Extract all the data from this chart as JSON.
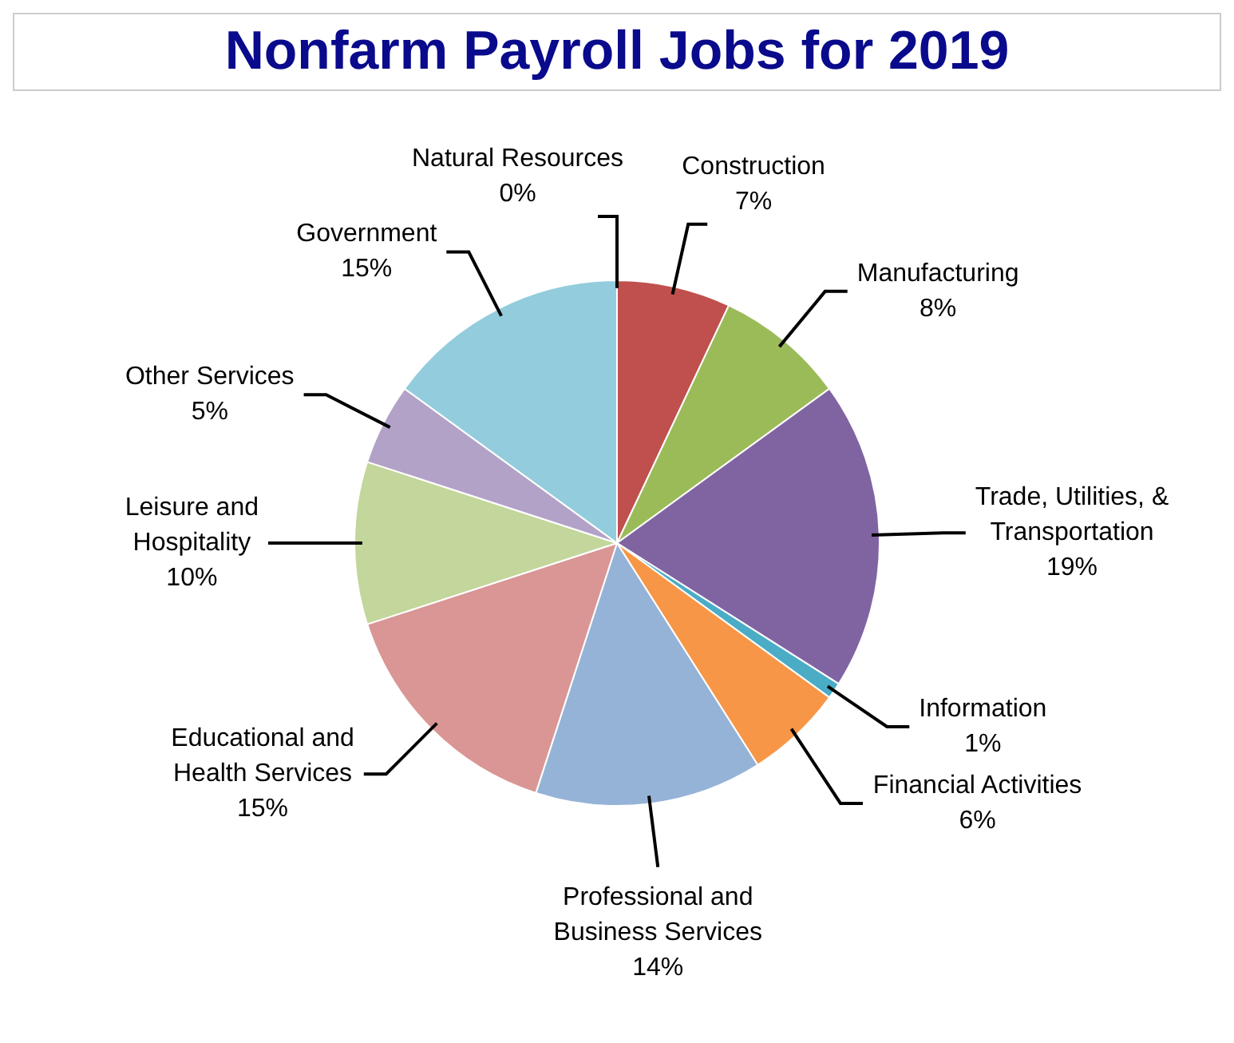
{
  "chart_data": {
    "type": "pie",
    "title": "Nonfarm Payroll Jobs for 2019",
    "categories": [
      "Natural Resources",
      "Construction",
      "Manufacturing",
      "Trade, Utilities, & Transportation",
      "Information",
      "Financial Activities",
      "Professional and Business Services",
      "Educational and Health Services",
      "Leisure and Hospitality",
      "Other Services",
      "Government"
    ],
    "values": [
      0,
      7,
      8,
      19,
      1,
      6,
      14,
      15,
      10,
      5,
      15
    ],
    "value_labels": [
      "0%",
      "7%",
      "8%",
      "19%",
      "1%",
      "6%",
      "14%",
      "15%",
      "10%",
      "5%",
      "15%"
    ],
    "colors": [
      "#7f7f7f",
      "#c0504d",
      "#9bbb59",
      "#8064a2",
      "#4bacc6",
      "#f79646",
      "#95b3d7",
      "#d99694",
      "#c3d69b",
      "#b3a2c7",
      "#93cddd"
    ],
    "legend": false
  }
}
